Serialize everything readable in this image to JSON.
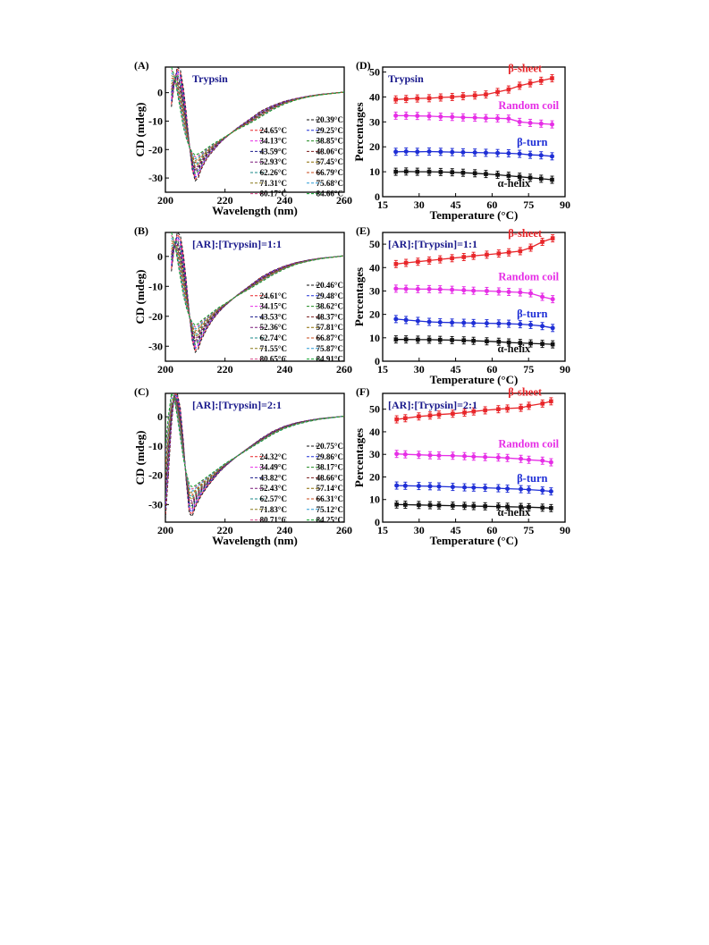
{
  "figure": {
    "panel_letters": [
      "(A)",
      "(B)",
      "(C)",
      "(D)",
      "(E)",
      "(F)"
    ]
  },
  "colors": {
    "axis": "#000000",
    "title_blue": "#1a1a8c",
    "beta_sheet": "#e8262a",
    "random_coil": "#e62ee6",
    "beta_turn": "#1f2fd6",
    "alpha_helix": "#111111",
    "cd_palette": [
      "#111111",
      "#e8262a",
      "#1f2fd6",
      "#e62ee6",
      "#1f8a1f",
      "#1a1a8c",
      "#7a1a1a",
      "#7a1a7a",
      "#8a6a00",
      "#1a8a8a",
      "#c84a1a",
      "#8a7a1a",
      "#2a9ad6",
      "#d64a8a",
      "#0aa02a",
      "#b0185a"
    ]
  },
  "chart_data": [
    {
      "panel": "(A)",
      "type": "line",
      "title": "Trypsin",
      "xlabel": "Wavelength (nm)",
      "ylabel": "CD (mdeg)",
      "xlim": [
        200,
        260
      ],
      "ylim": [
        -35,
        9
      ],
      "xticks": [
        200,
        220,
        240,
        260
      ],
      "yticks": [
        0,
        -10,
        -20,
        -30
      ],
      "legend": [
        "20.39°C",
        "24.65°C",
        "29.25°C",
        "34.13°C",
        "38.85°C",
        "43.59°C",
        "48.06°C",
        "52.93°C",
        "57.45°C",
        "62.26°C",
        "66.79°C",
        "71.31°C",
        "75.68°C",
        "80.17°C",
        "84.66°C"
      ],
      "legend_position": "lower-right",
      "line_style": "dashed",
      "x": [
        202,
        203,
        204,
        205,
        206,
        207,
        208,
        209,
        210,
        211,
        212,
        214,
        216,
        218,
        220,
        224,
        228,
        232,
        236,
        240,
        244,
        248,
        252,
        256,
        260
      ],
      "y_first": [
        -5,
        3,
        9,
        8,
        2,
        -7,
        -18,
        -27,
        -31,
        -30,
        -27,
        -23,
        -20.5,
        -18,
        -16,
        -12.5,
        -9.5,
        -6.5,
        -4.5,
        -3,
        -2,
        -1.2,
        -0.6,
        -0.2,
        0.2
      ],
      "y_last": [
        9,
        6,
        0,
        -6,
        -12,
        -16,
        -19,
        -21,
        -22,
        -21.5,
        -21,
        -19.5,
        -18,
        -16.8,
        -15.5,
        -13,
        -11,
        -8.5,
        -6,
        -4,
        -2.5,
        -1.5,
        -0.8,
        -0.3,
        0.2
      ]
    },
    {
      "panel": "(B)",
      "type": "line",
      "title": "[AR]:[Trypsin]=1:1",
      "xlabel": "",
      "ylabel": "CD (mdeg)",
      "xlim": [
        200,
        260
      ],
      "ylim": [
        -35,
        8
      ],
      "xticks": [
        200,
        220,
        240,
        260
      ],
      "yticks": [
        0,
        -10,
        -20,
        -30
      ],
      "legend": [
        "20.46°C",
        "24.61°C",
        "29.48°C",
        "34.15°C",
        "38.62°C",
        "43.53°C",
        "48.37°C",
        "52.36°C",
        "57.81°C",
        "62.74°C",
        "66.87°C",
        "71.55°C",
        "75.87°C",
        "80.65°C",
        "84.91°C"
      ],
      "legend_position": "lower-right",
      "line_style": "dashed",
      "x": [
        202,
        203,
        204,
        205,
        206,
        207,
        208,
        209,
        210,
        211,
        212,
        214,
        216,
        218,
        220,
        224,
        228,
        232,
        236,
        240,
        244,
        248,
        252,
        256,
        260
      ],
      "y_first": [
        -5,
        3,
        8,
        7,
        1,
        -8,
        -19,
        -28,
        -32,
        -31,
        -28,
        -24,
        -21,
        -18.5,
        -16.5,
        -13,
        -10,
        -7,
        -4.8,
        -3.2,
        -2,
        -1.2,
        -0.6,
        -0.2,
        0.2
      ],
      "y_last": [
        8,
        5,
        -1,
        -7,
        -13,
        -17,
        -20,
        -22,
        -23,
        -22.5,
        -21.5,
        -20,
        -18.5,
        -17,
        -15.8,
        -13.2,
        -11,
        -8.6,
        -6.2,
        -4.2,
        -2.6,
        -1.6,
        -0.8,
        -0.3,
        0.2
      ]
    },
    {
      "panel": "(C)",
      "type": "line",
      "title": "[AR]:[Trypsin]=2:1",
      "xlabel": "Wavelength (nm)",
      "ylabel": "CD (mdeg)",
      "xlim": [
        200,
        260
      ],
      "ylim": [
        -36,
        8
      ],
      "xticks": [
        200,
        220,
        240,
        260
      ],
      "yticks": [
        0,
        -10,
        -20,
        -30
      ],
      "legend": [
        "20.75°C",
        "24.32°C",
        "29.86°C",
        "34.49°C",
        "38.17°C",
        "43.82°C",
        "48.66°C",
        "52.43°C",
        "57.14°C",
        "62.57°C",
        "66.31°C",
        "71.83°C",
        "75.12°C",
        "80.71°C",
        "84.25°C"
      ],
      "legend_position": "lower-right",
      "line_style": "dashed",
      "x": [
        200,
        201,
        202,
        203,
        204,
        205,
        206,
        207,
        208,
        209,
        210,
        212,
        214,
        216,
        218,
        220,
        224,
        228,
        232,
        236,
        240,
        244,
        248,
        252,
        256,
        260
      ],
      "y_first": [
        -35,
        -20,
        -3,
        8,
        8,
        3,
        -8,
        -22,
        -33,
        -34,
        -31,
        -27,
        -24,
        -21.5,
        -19,
        -17,
        -13.5,
        -10.5,
        -7.5,
        -5,
        -3.2,
        -2,
        -1.2,
        -0.6,
        -0.2,
        0.2
      ],
      "y_last": [
        -10,
        0,
        8,
        6,
        0,
        -7,
        -14,
        -19,
        -23,
        -24,
        -23.5,
        -22,
        -20.5,
        -19,
        -17.5,
        -16,
        -13.5,
        -11,
        -8.5,
        -6,
        -4,
        -2.6,
        -1.6,
        -0.8,
        -0.3,
        0.2
      ]
    },
    {
      "panel": "(D)",
      "type": "line",
      "title": "Trypsin",
      "xlabel": "Temperature (°C)",
      "ylabel": "Percentages",
      "xlim": [
        15,
        90
      ],
      "ylim": [
        0,
        52
      ],
      "xticks": [
        15,
        30,
        45,
        60,
        75,
        90
      ],
      "yticks": [
        0,
        10,
        20,
        30,
        40,
        50
      ],
      "x": [
        20.39,
        24.65,
        29.25,
        34.13,
        38.85,
        43.59,
        48.06,
        52.93,
        57.45,
        62.26,
        66.79,
        71.31,
        75.68,
        80.17,
        84.66
      ],
      "series": [
        {
          "name": "β-sheet",
          "values": [
            39,
            39.2,
            39.4,
            39.5,
            39.8,
            40,
            40.3,
            40.6,
            41,
            42,
            43,
            44.5,
            45.5,
            46.5,
            47.5
          ]
        },
        {
          "name": "Random coil",
          "values": [
            32.5,
            32.5,
            32.4,
            32.3,
            32.1,
            32,
            31.8,
            31.7,
            31.5,
            31.4,
            31.3,
            30,
            29.6,
            29.3,
            29
          ]
        },
        {
          "name": "β-turn",
          "values": [
            18,
            18.1,
            18,
            18.1,
            18,
            17.9,
            17.8,
            17.7,
            17.6,
            17.5,
            17.4,
            17.2,
            16.8,
            16.6,
            16.2
          ]
        },
        {
          "name": "α-helix",
          "values": [
            10,
            10.1,
            10,
            10,
            9.9,
            9.8,
            9.6,
            9.4,
            9.1,
            8.8,
            8.4,
            8,
            7.6,
            7.2,
            6.8
          ]
        }
      ]
    },
    {
      "panel": "(E)",
      "type": "line",
      "title": "[AR]:[Trypsin]=1:1",
      "xlabel": "Temperature (°C)",
      "ylabel": "Percentages",
      "xlim": [
        15,
        90
      ],
      "ylim": [
        0,
        55
      ],
      "xticks": [
        15,
        30,
        45,
        60,
        75,
        90
      ],
      "yticks": [
        0,
        10,
        20,
        30,
        40,
        50
      ],
      "x": [
        20.46,
        24.61,
        29.48,
        34.15,
        38.62,
        43.53,
        48.37,
        52.36,
        57.81,
        62.74,
        66.87,
        71.55,
        75.87,
        80.65,
        84.91
      ],
      "series": [
        {
          "name": "β-sheet",
          "values": [
            41.5,
            42,
            42.5,
            43,
            43.5,
            44,
            44.5,
            45,
            45.5,
            46,
            46.5,
            47,
            48.5,
            51,
            52.5
          ]
        },
        {
          "name": "Random coil",
          "values": [
            31,
            30.9,
            30.8,
            30.8,
            30.7,
            30.5,
            30.3,
            30.1,
            30,
            29.8,
            29.6,
            29.4,
            29,
            27.5,
            26.5
          ]
        },
        {
          "name": "β-turn",
          "values": [
            18,
            17.6,
            17.2,
            16.8,
            16.6,
            16.5,
            16.4,
            16.3,
            16.2,
            16.1,
            16,
            15.8,
            15.5,
            15,
            14.2
          ]
        },
        {
          "name": "α-helix",
          "values": [
            9.3,
            9.3,
            9.2,
            9.2,
            9.1,
            9,
            8.9,
            8.7,
            8.5,
            8.3,
            8,
            7.8,
            7.6,
            7.4,
            7.2
          ]
        }
      ]
    },
    {
      "panel": "(F)",
      "type": "line",
      "title": "[AR]:[Trypsin]=2:1",
      "xlabel": "Temperature (°C)",
      "ylabel": "Percentages",
      "xlim": [
        15,
        90
      ],
      "ylim": [
        0,
        57
      ],
      "xticks": [
        15,
        30,
        45,
        60,
        75,
        90
      ],
      "yticks": [
        0,
        10,
        20,
        30,
        40,
        50
      ],
      "x": [
        20.75,
        24.32,
        29.86,
        34.49,
        38.17,
        43.82,
        48.66,
        52.43,
        57.14,
        62.57,
        66.31,
        71.83,
        75.12,
        80.71,
        84.25
      ],
      "series": [
        {
          "name": "β-sheet",
          "values": [
            45.5,
            46,
            46.8,
            47.2,
            47.6,
            48,
            48.5,
            49,
            49.5,
            50,
            50.3,
            50.6,
            51.5,
            52.5,
            53.5
          ]
        },
        {
          "name": "Random coil",
          "values": [
            30.2,
            30,
            29.8,
            29.6,
            29.5,
            29.4,
            29.2,
            29,
            28.8,
            28.6,
            28.4,
            28,
            27.6,
            27.2,
            26.5
          ]
        },
        {
          "name": "β-turn",
          "values": [
            16.2,
            16.1,
            16,
            15.9,
            15.8,
            15.6,
            15.4,
            15.3,
            15.2,
            15,
            14.8,
            14.6,
            14.4,
            14,
            13.6
          ]
        },
        {
          "name": "α-helix",
          "values": [
            7.8,
            7.7,
            7.6,
            7.5,
            7.4,
            7.3,
            7.2,
            7.1,
            7,
            6.9,
            6.8,
            6.7,
            6.6,
            6.4,
            6.2
          ]
        }
      ]
    }
  ]
}
